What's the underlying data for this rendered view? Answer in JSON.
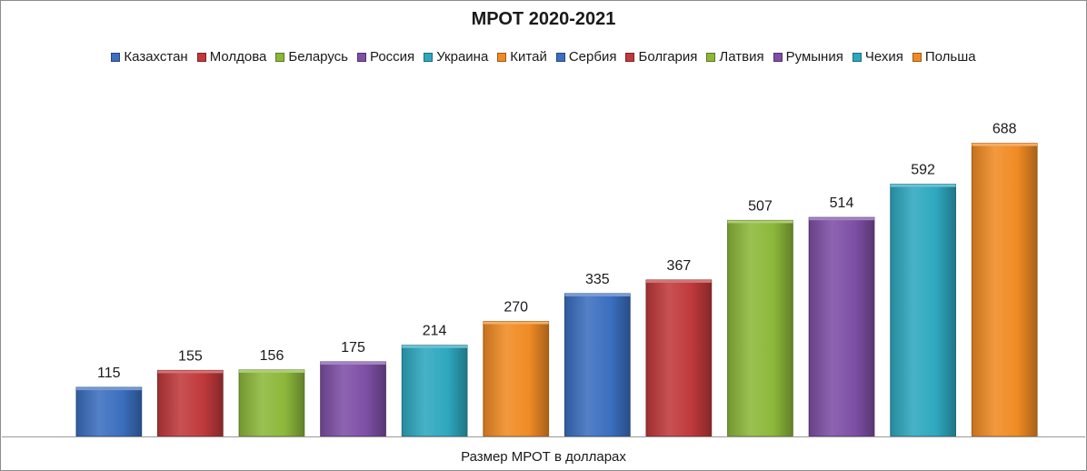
{
  "chart_data": {
    "type": "bar",
    "title": "МРОТ 2020-2021",
    "xlabel": "Размер МРОТ в долларах",
    "ylabel": "",
    "ylim": [
      0,
      700
    ],
    "grid": false,
    "legend_position": "top",
    "categories": [
      "Казахстан",
      "Молдова",
      "Беларусь",
      "Россия",
      "Украина",
      "Китай",
      "Сербия",
      "Болгария",
      "Латвия",
      "Румыния",
      "Чехия",
      "Польша"
    ],
    "values": [
      115,
      155,
      156,
      175,
      214,
      270,
      335,
      367,
      507,
      514,
      592,
      688
    ],
    "colors": [
      "#3b6fbf",
      "#c0393b",
      "#8cb83a",
      "#7e4fa6",
      "#2ea8bf",
      "#f08b24",
      "#3b6fbf",
      "#c0393b",
      "#8cb83a",
      "#7e4fa6",
      "#2ea8bf",
      "#f08b24"
    ]
  }
}
